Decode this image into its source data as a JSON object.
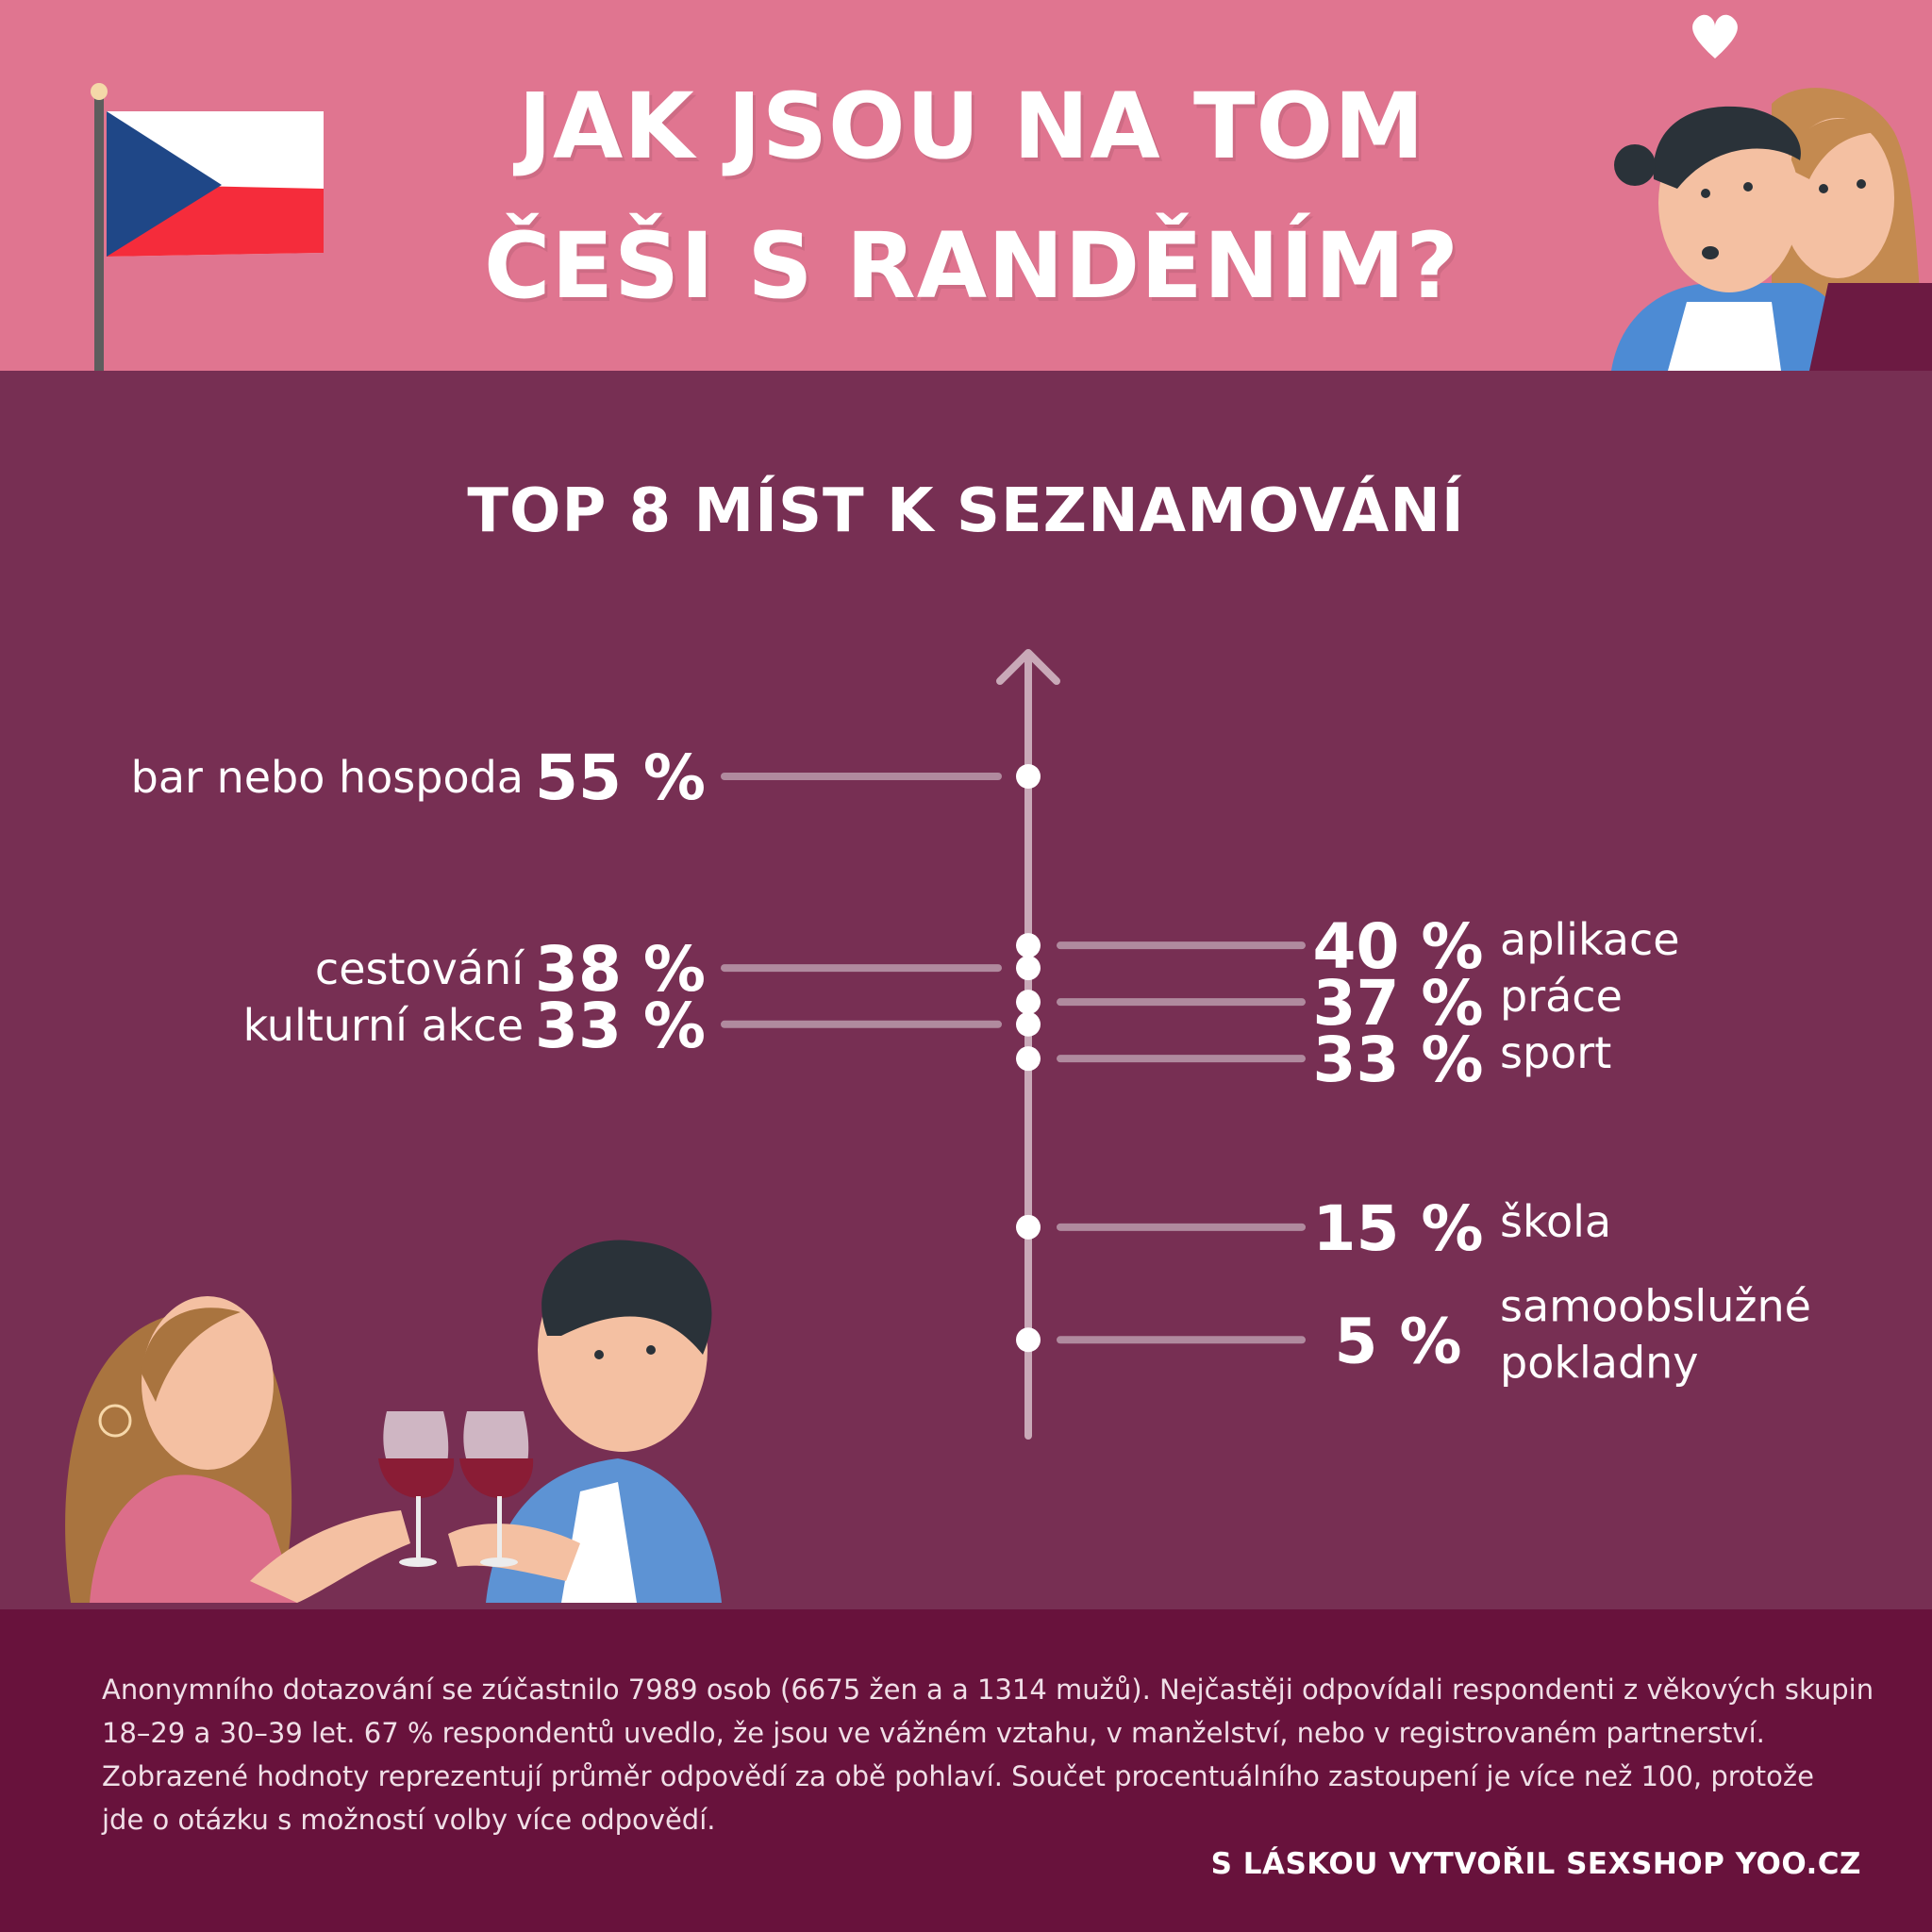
{
  "header": {
    "title_line1": "JAK JSOU NA TOM",
    "title_line2": "ČEŠI S RANDĚNÍM?"
  },
  "chart_title": "TOP 8 MÍST K SEZNAMOVÁNÍ",
  "chart_data": {
    "type": "scatter",
    "title": "TOP 8 MÍST K SEZNAMOVÁNÍ",
    "unit": "%",
    "ylim": [
      0,
      65
    ],
    "points": [
      {
        "label": "bar nebo hospoda",
        "value": 55,
        "display": "55 %",
        "side": "left"
      },
      {
        "label": "aplikace",
        "value": 40,
        "display": "40 %",
        "side": "right"
      },
      {
        "label": "cestování",
        "value": 38,
        "display": "38 %",
        "side": "left"
      },
      {
        "label": "práce",
        "value": 37,
        "display": "37 %",
        "side": "right"
      },
      {
        "label": "kulturní akce",
        "value": 33,
        "display": "33 %",
        "side": "left"
      },
      {
        "label": "sport",
        "value": 33,
        "display": "33 %",
        "side": "right"
      },
      {
        "label": "škola",
        "value": 15,
        "display": "15 %",
        "side": "right"
      },
      {
        "label": "samoobslužné pokladny",
        "value": 5,
        "display": "5 %",
        "side": "right",
        "label_lines": [
          "samoobslužné",
          "pokladny"
        ]
      }
    ]
  },
  "footer": {
    "note_lines": [
      "Anonymního dotazování se zúčastnilo 7989 osob (6675 žen a a 1314 mužů). Nejčastěji odpovídali respondenti z věkových skupin",
      "18–29 a 30–39 let. 67 % respondentů uvedlo, že jsou ve vážném vztahu, v manželství, nebo v registrovaném partnerství.",
      "Zobrazené hodnoty reprezentují průměr odpovědí za obě pohlaví. Součet procentuálního zastoupení je více než 100, protože",
      "jde o otázku s možností volby více odpovědí."
    ],
    "credit": "S LÁSKOU VYTVOŘIL SEXSHOP YOO.CZ"
  },
  "colors": {
    "header_bg": "#e07590",
    "main_bg": "#772f53",
    "footer_bg": "#68123c",
    "axis": "#c9a9b8",
    "connector": "#b08a9e",
    "text": "#ffffff"
  },
  "icons": [
    "czech-flag-icon",
    "heart-icon",
    "couple-illustration",
    "wine-toast-illustration"
  ]
}
